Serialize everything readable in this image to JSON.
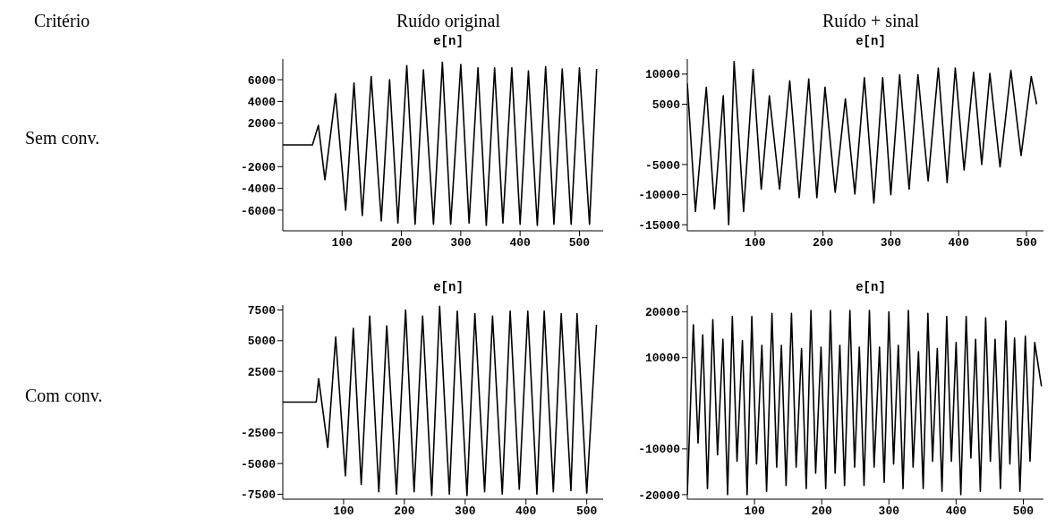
{
  "chart_data": [
    {
      "type": "line",
      "title": "e[n]",
      "annotations": [
        "Critério",
        "Ruído original",
        "Sem conv."
      ],
      "color": "#000000",
      "marker": "none",
      "grid": false,
      "legend": false,
      "xlim": [
        0,
        540
      ],
      "xticks": [
        100,
        200,
        300,
        400,
        500
      ],
      "ylim": [
        -7900,
        7900
      ],
      "yticks": [
        -6000,
        -4000,
        -2000,
        2000,
        4000,
        6000
      ],
      "x": [
        0,
        50,
        60,
        71,
        89,
        106,
        120,
        134,
        149,
        166,
        180,
        194,
        209,
        223,
        237,
        254,
        269,
        283,
        300,
        314,
        329,
        343,
        357,
        371,
        386,
        400,
        414,
        429,
        443,
        457,
        471,
        486,
        500,
        517,
        529
      ],
      "values": [
        0,
        0,
        1800,
        -3200,
        4700,
        -6000,
        5700,
        -6500,
        6300,
        -7000,
        6000,
        -7200,
        7300,
        -7300,
        6900,
        -7300,
        7600,
        -7300,
        7400,
        -7200,
        7100,
        -7400,
        7100,
        -7200,
        7100,
        -7300,
        6800,
        -7400,
        7200,
        -7300,
        7000,
        -7300,
        7100,
        -7300,
        7000
      ]
    },
    {
      "type": "line",
      "title": "e[n]",
      "annotations": [
        "Ruído + sinal"
      ],
      "color": "#000000",
      "marker": "none",
      "grid": false,
      "legend": false,
      "xlim": [
        0,
        525
      ],
      "xticks": [
        100,
        200,
        300,
        400,
        500
      ],
      "ylim": [
        -16000,
        12500
      ],
      "yticks": [
        -15000,
        -10000,
        -5000,
        5000,
        10000
      ],
      "x": [
        0,
        12,
        28,
        40,
        53,
        61,
        69,
        83,
        97,
        109,
        121,
        136,
        151,
        165,
        179,
        191,
        203,
        218,
        233,
        247,
        261,
        275,
        288,
        300,
        313,
        327,
        340,
        355,
        370,
        383,
        395,
        408,
        422,
        434,
        446,
        461,
        477,
        492,
        507,
        515
      ],
      "values": [
        8500,
        -12800,
        7800,
        -12400,
        6400,
        -15000,
        12100,
        -12800,
        10800,
        -9100,
        6400,
        -9100,
        8900,
        -10500,
        9200,
        -10500,
        7800,
        -9600,
        5900,
        -9900,
        9400,
        -11400,
        9400,
        -10000,
        9900,
        -9100,
        9900,
        -7700,
        11000,
        -8000,
        11000,
        -5900,
        10300,
        -5000,
        10100,
        -5400,
        10600,
        -3500,
        9600,
        5000
      ]
    },
    {
      "type": "line",
      "title": "e[n]",
      "annotations": [
        "Com conv."
      ],
      "color": "#000000",
      "marker": "none",
      "grid": false,
      "legend": false,
      "xlim": [
        0,
        527
      ],
      "xticks": [
        100,
        200,
        300,
        400,
        500
      ],
      "ylim": [
        -7900,
        7900
      ],
      "yticks": [
        -7500,
        -5000,
        -2500,
        2500,
        5000,
        7500
      ],
      "x": [
        0,
        55,
        59,
        74,
        87,
        103,
        116,
        129,
        143,
        158,
        171,
        187,
        202,
        216,
        230,
        245,
        258,
        274,
        287,
        303,
        316,
        332,
        345,
        361,
        374,
        389,
        403,
        418,
        430,
        445,
        458,
        474,
        484,
        500,
        516
      ],
      "values": [
        0,
        0,
        1900,
        -3700,
        5300,
        -6000,
        6000,
        -6700,
        7000,
        -7300,
        6200,
        -7500,
        7500,
        -7300,
        7000,
        -7600,
        7800,
        -7500,
        7400,
        -7600,
        7200,
        -7300,
        7000,
        -7500,
        7400,
        -7100,
        7400,
        -7500,
        7400,
        -7300,
        7200,
        -7200,
        7200,
        -7400,
        6300
      ]
    },
    {
      "type": "line",
      "title": "e[n]",
      "color": "#000000",
      "marker": "none",
      "grid": false,
      "legend": false,
      "xlim": [
        0,
        530
      ],
      "xticks": [
        100,
        200,
        300,
        400,
        500
      ],
      "ylim": [
        -21000,
        21500
      ],
      "yticks": [
        -20000,
        -10000,
        10000,
        20000
      ],
      "x": [
        0,
        9,
        16,
        23,
        30,
        38,
        45,
        53,
        60,
        67,
        74,
        82,
        89,
        96,
        103,
        111,
        118,
        126,
        133,
        140,
        147,
        155,
        162,
        170,
        177,
        184,
        191,
        199,
        206,
        213,
        220,
        227,
        234,
        242,
        249,
        256,
        263,
        271,
        278,
        286,
        293,
        300,
        307,
        314,
        321,
        329,
        336,
        344,
        351,
        358,
        365,
        372,
        379,
        386,
        393,
        400,
        407,
        415,
        422,
        429,
        436,
        444,
        451,
        458,
        466,
        474,
        480,
        487,
        495,
        503,
        510,
        517,
        527
      ],
      "values": [
        -20000,
        17200,
        -8700,
        15000,
        -18700,
        18300,
        -11300,
        14000,
        -20000,
        19000,
        -12700,
        13700,
        -20000,
        19000,
        -13300,
        12700,
        -19300,
        19700,
        -14000,
        12700,
        -18000,
        19700,
        -14000,
        12000,
        -18700,
        20300,
        -15300,
        12300,
        -18700,
        20300,
        -15300,
        12700,
        -18000,
        20300,
        -14000,
        12300,
        -18000,
        20300,
        -14000,
        12300,
        -17300,
        20000,
        -13300,
        12700,
        -18700,
        20300,
        -14000,
        11300,
        -18700,
        19700,
        -12700,
        12000,
        -19300,
        19000,
        -12700,
        13300,
        -20000,
        19000,
        -12000,
        14000,
        -19300,
        18700,
        -12700,
        14000,
        -18700,
        18000,
        -13300,
        14300,
        -19300,
        14700,
        -12700,
        13300,
        3700
      ]
    }
  ]
}
